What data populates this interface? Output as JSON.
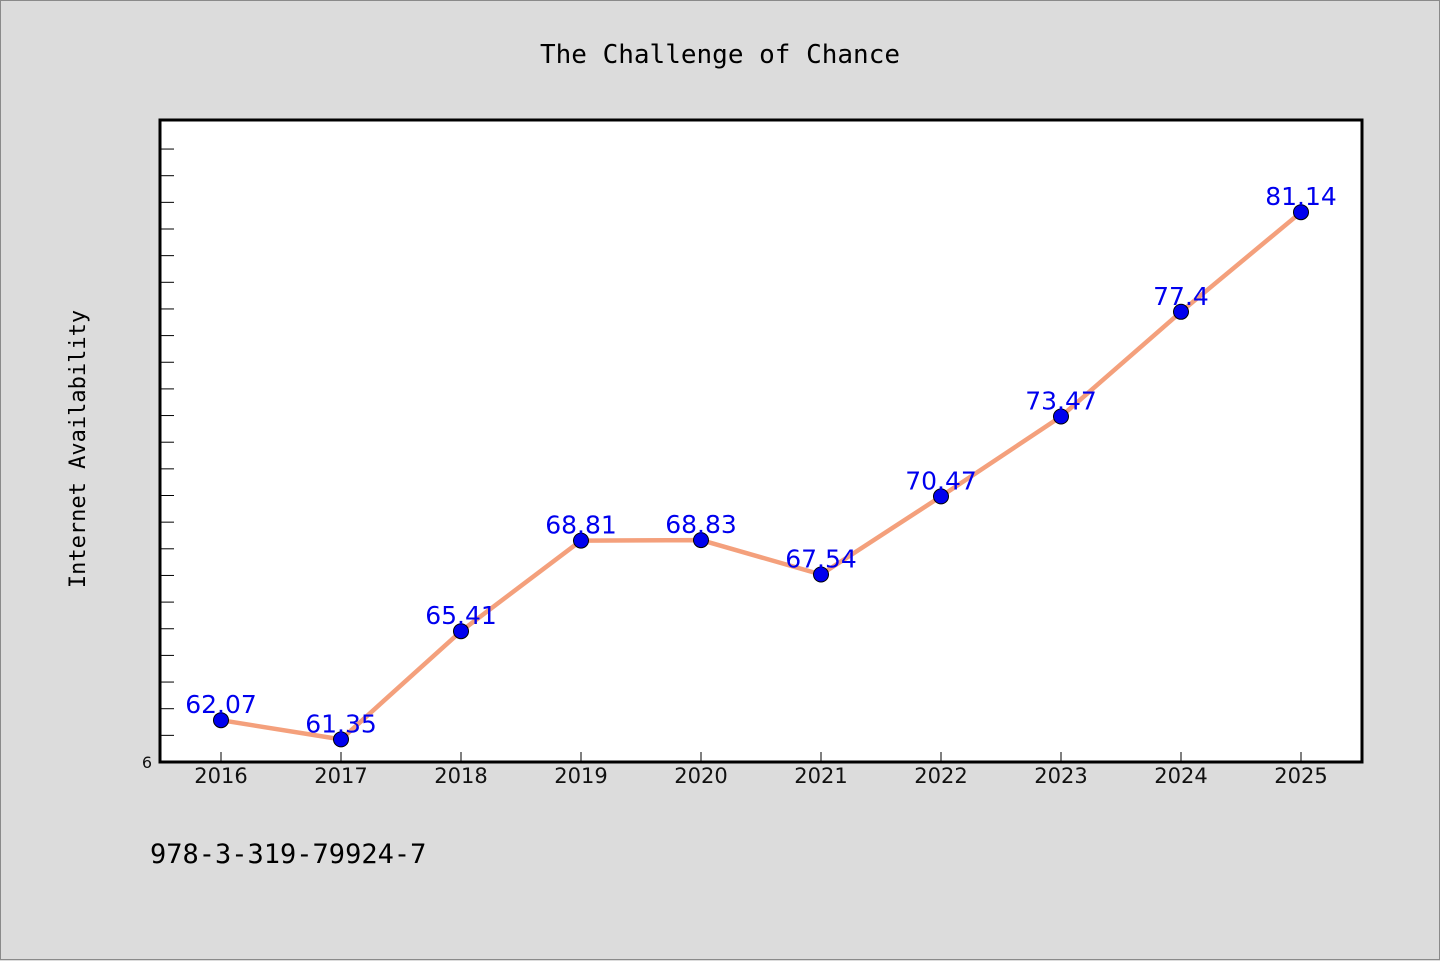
{
  "chart_data": {
    "type": "line",
    "title": "The Challenge of Chance",
    "xlabel": "",
    "ylabel": "Internet Availability",
    "x": [
      "2016",
      "2017",
      "2018",
      "2019",
      "2020",
      "2021",
      "2022",
      "2023",
      "2024",
      "2025"
    ],
    "series": [
      {
        "values": [
          62.07,
          61.35,
          65.41,
          68.81,
          68.83,
          67.54,
          70.47,
          73.47,
          77.4,
          81.14
        ],
        "labels": [
          "62.07",
          "61.35",
          "65.41",
          "68.81",
          "68.83",
          "67.54",
          "70.47",
          "73.47",
          "77.4",
          "81.14"
        ],
        "line_color": "#f4a07c",
        "marker_color": "#0000ee"
      }
    ],
    "y_ticks_labeled": [
      "6"
    ],
    "ylim": [
      60.5,
      84.6
    ],
    "grid": false,
    "legend": "none"
  },
  "footnote": "978-3-319-79924-7",
  "colors": {
    "background": "#dcdcdc",
    "plot_background": "#ffffff",
    "data_label": "#0000ee"
  }
}
